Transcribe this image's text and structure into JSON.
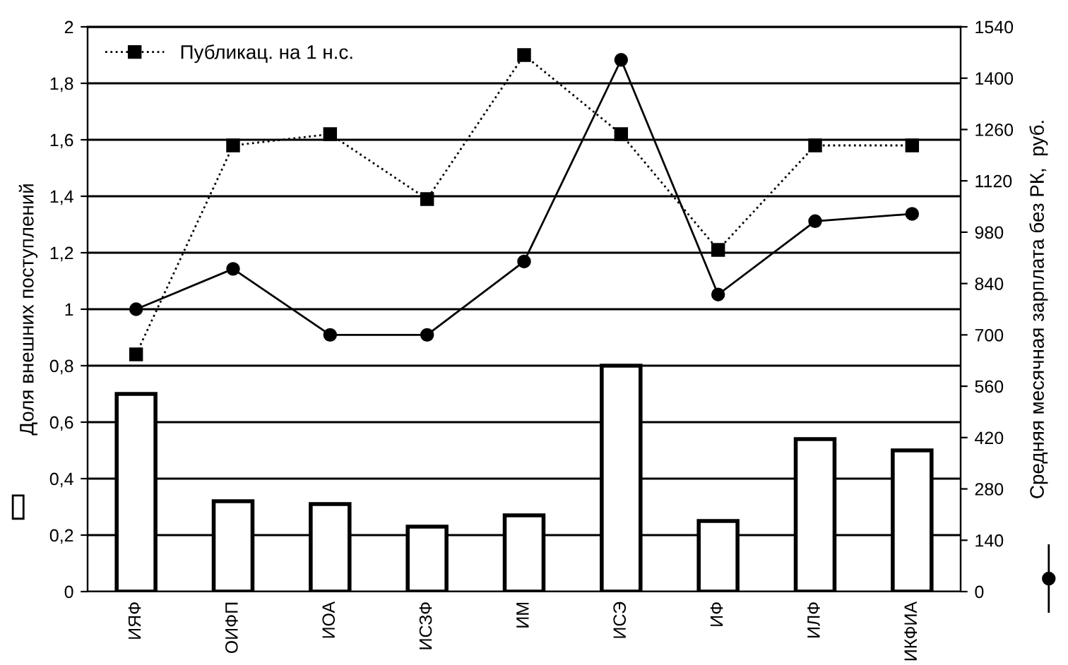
{
  "chart_data": {
    "type": "bar",
    "ylabel": "Доля внешних поступлений",
    "y2label": "Средняя месячная зарплата без РК,  руб.",
    "categories": [
      "ИЯФ",
      "ОИФП",
      "ИОА",
      "ИСЗФ",
      "ИМ",
      "ИСЭ",
      "ИФ",
      "ИЛФ",
      "ИКФИА"
    ],
    "series": [
      {
        "color": "#ffffff",
        "values": [
          0.7,
          0.32,
          0.31,
          0.23,
          0.27,
          0.8,
          0.25,
          0.54,
          0.5
        ]
      },
      {
        "type": "line",
        "name": "Публикац. на 1 н.с.",
        "color": "#000000",
        "marker": "square",
        "line_style": "dotted",
        "values": [
          0.84,
          1.58,
          1.62,
          1.39,
          1.9,
          1.62,
          1.21,
          1.58,
          1.58
        ]
      },
      {
        "type": "line",
        "axis": "y2",
        "color": "#000000",
        "marker": "circle",
        "line_style": "solid",
        "values": [
          770,
          880,
          700,
          700,
          900,
          1450,
          810,
          1010,
          1030
        ]
      }
    ],
    "ylim": [
      0,
      2
    ],
    "yticks": [
      0,
      {
        "value": 0.2,
        "label": "0,2"
      },
      {
        "value": 0.4,
        "label": "0,4"
      },
      {
        "value": 0.6,
        "label": "0,6"
      },
      {
        "value": 0.8,
        "label": "0,8"
      },
      1,
      {
        "value": 1.2,
        "label": "1,2"
      },
      {
        "value": 1.4,
        "label": "1,4"
      },
      {
        "value": 1.6,
        "label": "1,6"
      },
      {
        "value": 1.8,
        "label": "1,8"
      },
      2
    ],
    "y2lim": [
      0,
      1540
    ],
    "y2ticks": [
      0,
      140,
      280,
      420,
      560,
      700,
      840,
      980,
      1120,
      1260,
      1400,
      1540
    ],
    "grid": "y",
    "legend": "top left"
  }
}
